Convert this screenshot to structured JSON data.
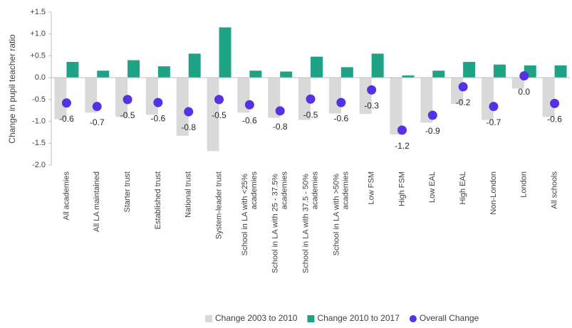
{
  "chart_data": {
    "type": "bar",
    "y_label": "Change in pupil teacher ratio",
    "categories": [
      "All academies",
      "All LA maintained",
      "Starter trust",
      "Established trust",
      "National trust",
      "System-leader trust",
      "School in LA with <25% academies",
      "School in LA with 25 - 37.5% academies",
      "School in LA with 37.5 - 50% academies",
      "School in LA with >50% academies",
      "Low FSM",
      "High FSM",
      "Low EAL",
      "High EAL",
      "Non-London",
      "London",
      "All schools"
    ],
    "series": [
      {
        "name": "Change 2003 to 2010",
        "type": "bar",
        "color": "#d9d9d9",
        "values": [
          -0.95,
          -0.8,
          -0.9,
          -0.85,
          -1.33,
          -1.68,
          -0.8,
          -0.92,
          -0.97,
          -0.82,
          -0.83,
          -1.3,
          -1.03,
          -0.6,
          -0.97,
          -0.25,
          -0.9
        ]
      },
      {
        "name": "Change 2010 to 2017",
        "type": "bar",
        "color": "#1fa386",
        "values": [
          0.36,
          0.16,
          0.4,
          0.26,
          0.55,
          1.15,
          0.16,
          0.14,
          0.48,
          0.24,
          0.55,
          0.05,
          0.16,
          0.36,
          0.3,
          0.28,
          0.28
        ]
      },
      {
        "name": "Overall Change",
        "type": "scatter",
        "color": "#5530e6",
        "values": [
          -0.58,
          -0.66,
          -0.5,
          -0.57,
          -0.78,
          -0.5,
          -0.62,
          -0.76,
          -0.49,
          -0.57,
          -0.28,
          -1.2,
          -0.86,
          -0.21,
          -0.66,
          0.04,
          -0.59
        ],
        "value_labels": [
          "-0.6",
          "-0.7",
          "-0.5",
          "-0.6",
          "-0.8",
          "-0.5",
          "-0.6",
          "-0.8",
          "-0.5",
          "-0.6",
          "-0.3",
          "-1.2",
          "-0.9",
          "-0.2",
          "-0.7",
          "0.0",
          "-0.6"
        ]
      }
    ],
    "ylim": [
      -2.0,
      1.5
    ],
    "yticks": [
      {
        "value": 1.5,
        "label": "+1.5"
      },
      {
        "value": 1.0,
        "label": "+1.0"
      },
      {
        "value": 0.5,
        "label": "+0.5"
      },
      {
        "value": 0,
        "label": "0.0"
      },
      -0.5,
      {
        "value": -1.0,
        "label": "-1.0"
      },
      -1.5,
      {
        "value": -2.0,
        "label": "-2.0"
      }
    ],
    "legend": "bottom"
  }
}
